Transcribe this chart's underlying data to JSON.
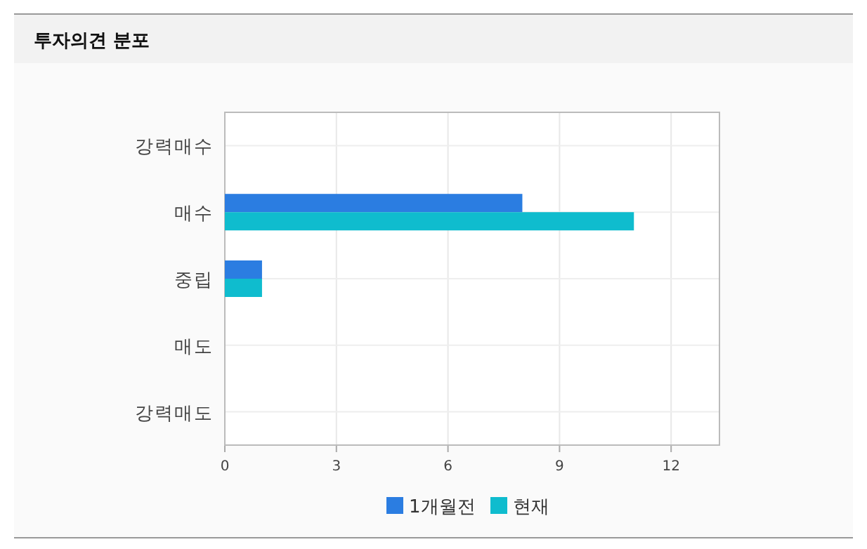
{
  "chart_data": {
    "type": "bar",
    "orientation": "horizontal",
    "title": "투자의견 분포",
    "categories": [
      "강력매수",
      "매수",
      "중립",
      "매도",
      "강력매도"
    ],
    "series": [
      {
        "name": "1개월전",
        "color": "#2b7de1",
        "values": [
          0,
          8,
          1,
          0,
          0
        ]
      },
      {
        "name": "현재",
        "color": "#0fbcce",
        "values": [
          0,
          11,
          1,
          0,
          0
        ]
      }
    ],
    "xlim": [
      0,
      13.3
    ],
    "xticks": [
      0,
      3,
      6,
      9,
      12
    ],
    "grid": true,
    "legend": "bottom"
  }
}
